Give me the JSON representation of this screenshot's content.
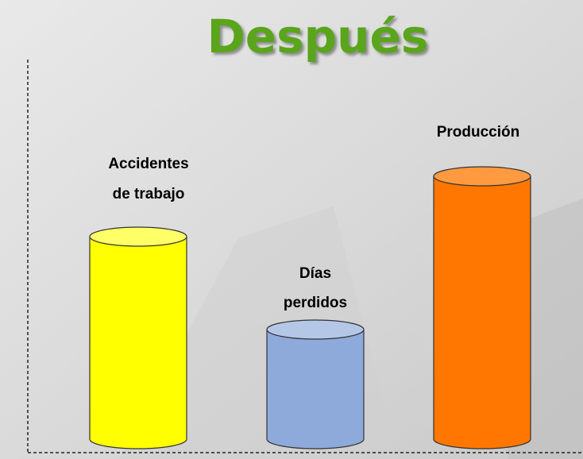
{
  "title": "Después",
  "items": [
    {
      "label_lines": [
        "Accidentes",
        "de trabajo"
      ]
    },
    {
      "label_lines": [
        "Días",
        "perdidos"
      ]
    },
    {
      "label_lines": [
        "Producción"
      ]
    }
  ]
}
